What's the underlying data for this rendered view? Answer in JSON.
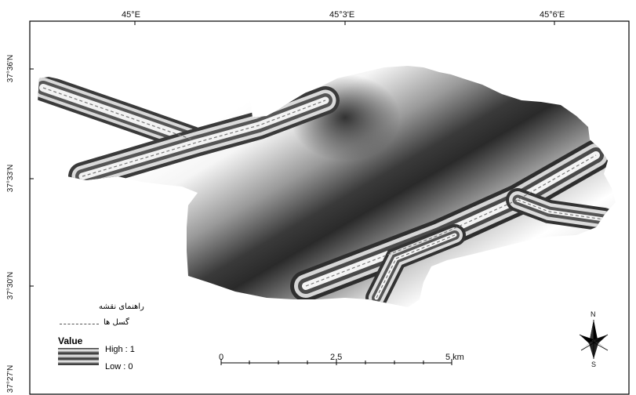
{
  "map": {
    "top_labels": [
      "45°E",
      "45°3'E",
      "45°6'E"
    ],
    "left_labels": [
      "37°36'N",
      "37°33'N",
      "37°30'N",
      "37°27'N"
    ]
  },
  "legend": {
    "title": "راهنمای نقشه",
    "fault_label": "گسل ها",
    "value_label": "Value",
    "high_label": "High : 1",
    "low_label": "Low : 0"
  },
  "scale_bar": {
    "labels": [
      "0",
      "2.5",
      "5 km"
    ]
  },
  "north_arrow": {
    "n_label": "N",
    "s_label": "S"
  }
}
